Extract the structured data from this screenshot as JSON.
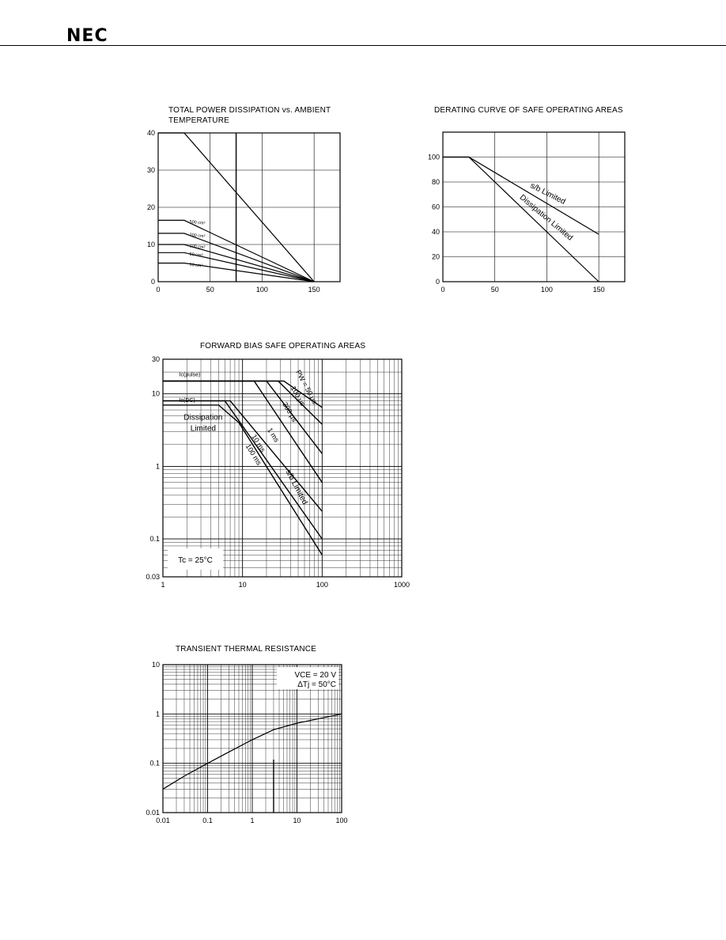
{
  "header": {
    "logo_text": "NEC"
  },
  "chart_data": [
    {
      "id": "pd",
      "type": "line",
      "title": "TOTAL POWER DISSIPATION vs. AMBIENT",
      "title_line2": "TEMPERATURE",
      "xlim": [
        0,
        175
      ],
      "ylim": [
        0,
        40
      ],
      "x_ticks": [
        0,
        50,
        100,
        150
      ],
      "y_ticks": [
        0,
        10,
        20,
        30,
        40
      ],
      "series": [
        {
          "name": "",
          "x": [
            0,
            25,
            150
          ],
          "y": [
            40,
            40,
            0
          ]
        },
        {
          "name": "500 cm²",
          "x": [
            0,
            25,
            150
          ],
          "y": [
            16.5,
            16.5,
            0
          ]
        },
        {
          "name": "200 cm²",
          "x": [
            0,
            25,
            150
          ],
          "y": [
            13,
            13,
            0
          ]
        },
        {
          "name": "100 cm²",
          "x": [
            0,
            25,
            150
          ],
          "y": [
            10,
            10,
            0
          ]
        },
        {
          "name": "50 cm²",
          "x": [
            0,
            25,
            150
          ],
          "y": [
            7.8,
            7.8,
            0
          ]
        },
        {
          "name": "10 cm²",
          "x": [
            0,
            25,
            150
          ],
          "y": [
            5,
            5,
            0
          ]
        }
      ]
    },
    {
      "id": "derating",
      "type": "line",
      "title": "DERATING CURVE OF SAFE OPERATING AREAS",
      "xlim": [
        0,
        175
      ],
      "ylim": [
        0,
        120
      ],
      "x_ticks": [
        0,
        50,
        100,
        150
      ],
      "y_ticks": [
        0,
        20,
        40,
        60,
        80,
        100
      ],
      "series": [
        {
          "name": "s/b Limited",
          "x": [
            0,
            25,
            150
          ],
          "y": [
            100,
            100,
            38
          ]
        },
        {
          "name": "Dissipation Limited",
          "x": [
            0,
            25,
            150
          ],
          "y": [
            100,
            100,
            0
          ]
        }
      ]
    },
    {
      "id": "fbsoa",
      "type": "line",
      "title": "FORWARD BIAS SAFE OPERATING AREAS",
      "xscale": "log",
      "yscale": "log",
      "xlim": [
        1,
        1000
      ],
      "ylim": [
        0.03,
        30
      ],
      "x_ticks": [
        1,
        10,
        100,
        1000
      ],
      "y_ticks": [
        0.03,
        0.1,
        1,
        10,
        30
      ],
      "annotations": [
        "Ic(pulse)",
        "Ic(DC)",
        "Dissipation",
        "Limited",
        "s/b Limited",
        "Tc = 25°C"
      ],
      "series": [
        {
          "name": "PW = 50 μs",
          "x": [
            1,
            33,
            100
          ],
          "y": [
            15,
            15,
            6.5
          ]
        },
        {
          "name": "100 μs",
          "x": [
            1,
            28,
            100
          ],
          "y": [
            15,
            15,
            3.8
          ]
        },
        {
          "name": "300 μs",
          "x": [
            1,
            20,
            100
          ],
          "y": [
            15,
            15,
            1.5
          ]
        },
        {
          "name": "1 ms",
          "x": [
            1,
            14,
            100
          ],
          "y": [
            15,
            15,
            0.6
          ]
        },
        {
          "name": "10 ms",
          "x": [
            1,
            7,
            100
          ],
          "y": [
            8,
            8,
            0.24
          ]
        },
        {
          "name": "100 ms",
          "x": [
            1,
            6,
            100
          ],
          "y": [
            8,
            8,
            0.1
          ]
        },
        {
          "name": "DC",
          "x": [
            1,
            5,
            9,
            100
          ],
          "y": [
            7,
            7,
            4,
            0.06
          ]
        }
      ]
    },
    {
      "id": "transient",
      "type": "line",
      "title": "TRANSIENT  THERMAL  RESISTANCE",
      "xscale": "log",
      "yscale": "log",
      "xlim": [
        0.01,
        100
      ],
      "ylim": [
        0.01,
        10
      ],
      "x_ticks": [
        0.01,
        0.1,
        1,
        10,
        100
      ],
      "y_ticks": [
        0.01,
        0.1,
        1,
        10
      ],
      "annotations": [
        "VCE = 20 V",
        "ΔTj = 50°C"
      ],
      "series": [
        {
          "name": "",
          "x": [
            0.01,
            0.03,
            0.1,
            0.3,
            1,
            3,
            10,
            30,
            100
          ],
          "y": [
            0.03,
            0.055,
            0.1,
            0.17,
            0.3,
            0.48,
            0.65,
            0.8,
            1
          ]
        }
      ]
    }
  ]
}
